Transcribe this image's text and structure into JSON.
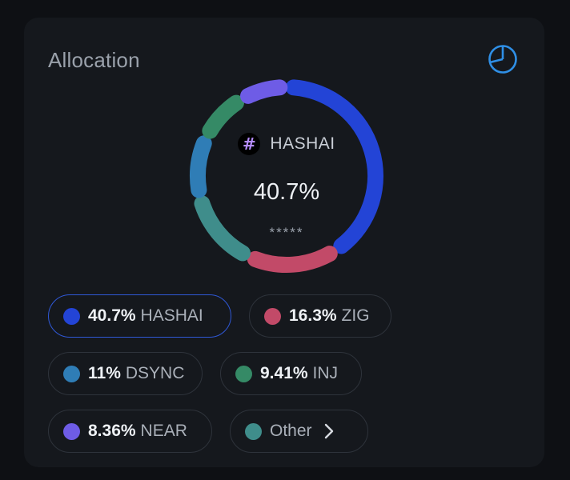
{
  "card": {
    "title": "Allocation",
    "toggle_icon": "pie-chart-icon"
  },
  "center": {
    "token_icon": "hash-token-icon",
    "token_glyph": "#",
    "token": "HASHAI",
    "percent": "40.7%",
    "masked_value": "*****"
  },
  "chart_data": {
    "type": "pie",
    "style": "donut",
    "slices": [
      {
        "name": "HASHAI",
        "percent_label": "40.7%",
        "value": 40.7,
        "color": "#2344d6"
      },
      {
        "name": "ZIG",
        "percent_label": "16.3%",
        "value": 16.3,
        "color": "#c24a68"
      },
      {
        "name": "Other",
        "value": 14.23,
        "color": "#3f8d8b"
      },
      {
        "name": "DSYNC",
        "percent_label": "11%",
        "value": 11,
        "color": "#2f7db6"
      },
      {
        "name": "INJ",
        "percent_label": "9.41%",
        "value": 9.41,
        "color": "#358a66"
      },
      {
        "name": "NEAR",
        "percent_label": "8.36%",
        "value": 8.36,
        "color": "#6e5ce6"
      }
    ]
  },
  "legend": [
    {
      "pct": "40.7%",
      "name": "HASHAI",
      "color": "#2344d6",
      "selected": true
    },
    {
      "pct": "16.3%",
      "name": "ZIG",
      "color": "#c24a68",
      "selected": false
    },
    {
      "pct": "11%",
      "name": "DSYNC",
      "color": "#2f7db6",
      "selected": false
    },
    {
      "pct": "9.41%",
      "name": "INJ",
      "color": "#358a66",
      "selected": false
    },
    {
      "pct": "8.36%",
      "name": "NEAR",
      "color": "#6e5ce6",
      "selected": false
    },
    {
      "pct": "",
      "name": "Other",
      "color": "#3f8d8b",
      "selected": false,
      "chevron_icon": "chevron-right-icon"
    }
  ]
}
